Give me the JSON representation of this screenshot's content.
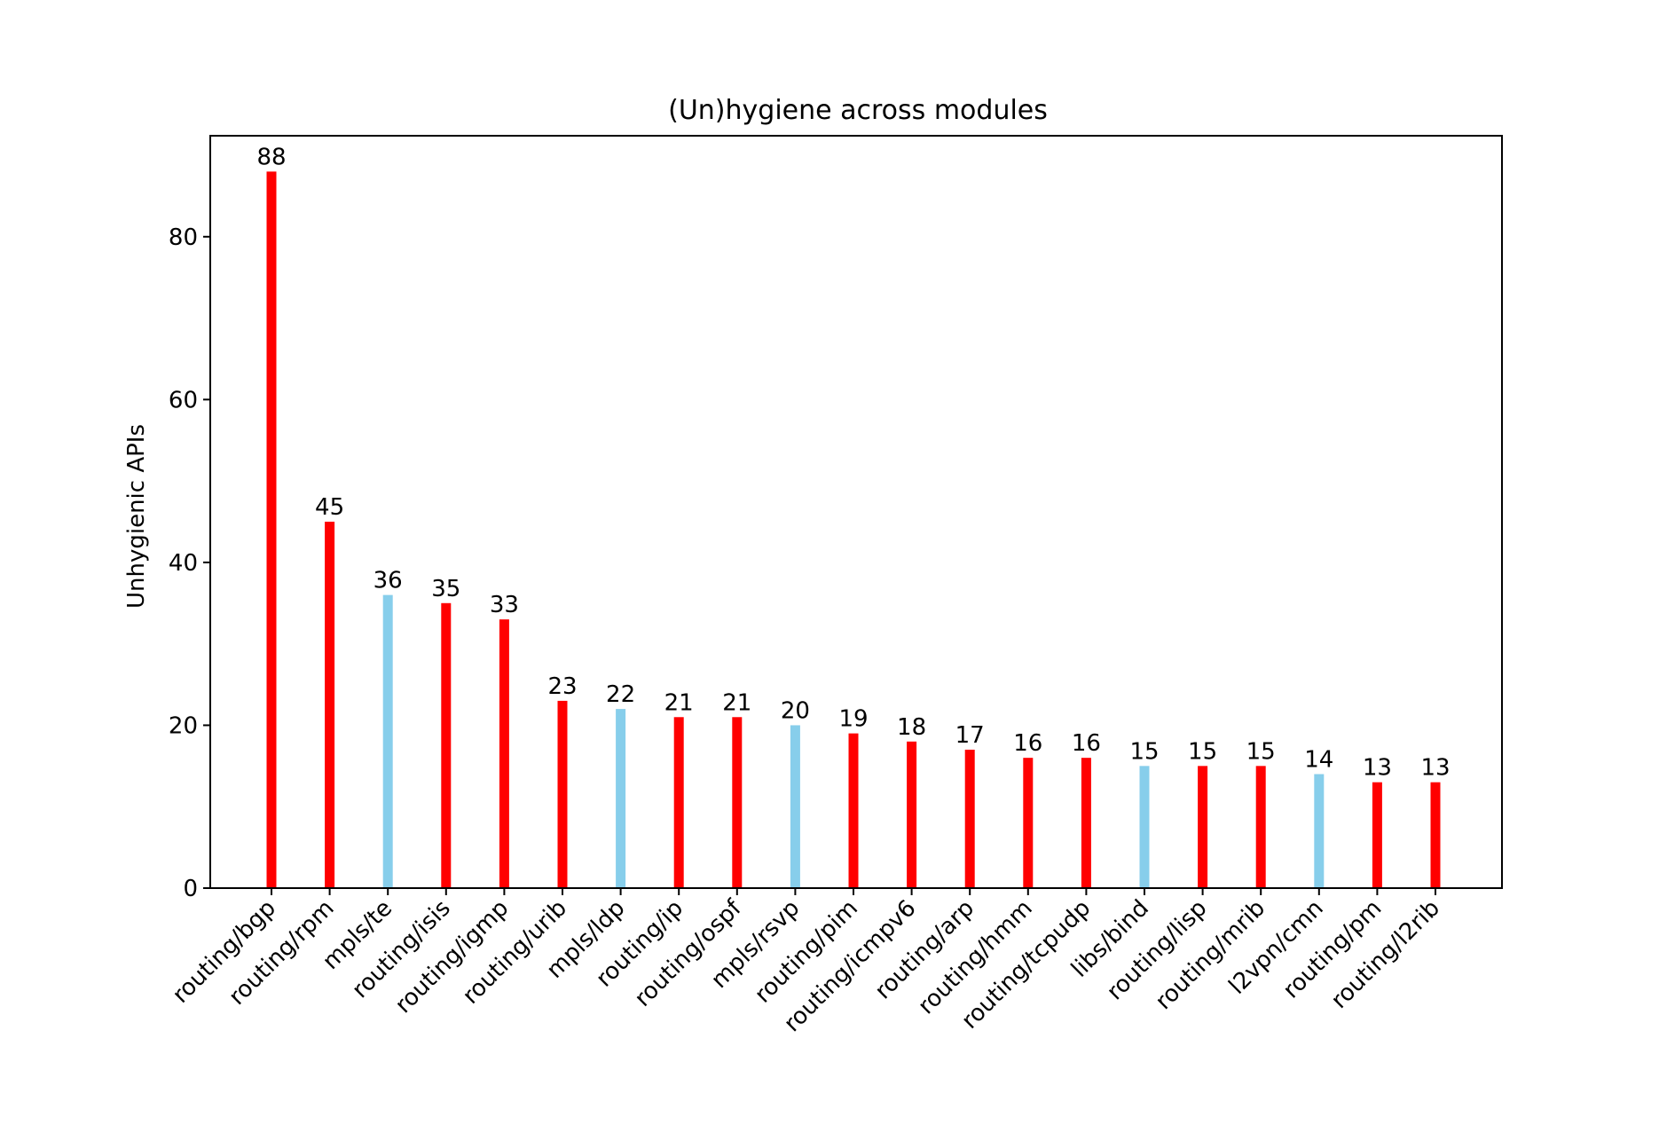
{
  "chart_data": {
    "type": "bar",
    "title": "(Un)hygiene across modules",
    "xlabel": "",
    "ylabel": "Unhygienic APIs",
    "ylim": [
      0,
      92.4
    ],
    "yticks": [
      0,
      20,
      40,
      60,
      80
    ],
    "grid": false,
    "legend": "none",
    "categories": [
      "routing/bgp",
      "routing/rpm",
      "mpls/te",
      "routing/isis",
      "routing/igmp",
      "routing/urib",
      "mpls/ldp",
      "routing/ip",
      "routing/ospf",
      "mpls/rsvp",
      "routing/pim",
      "routing/icmpv6",
      "routing/arp",
      "routing/hmm",
      "routing/tcpudp",
      "libs/bind",
      "routing/lisp",
      "routing/mrib",
      "l2vpn/cmn",
      "routing/pm",
      "routing/l2rib"
    ],
    "values": [
      88,
      45,
      36,
      35,
      33,
      23,
      22,
      21,
      21,
      20,
      19,
      18,
      17,
      16,
      16,
      15,
      15,
      15,
      14,
      13,
      13
    ],
    "value_labels": [
      "88",
      "45",
      "36",
      "35",
      "33",
      "23",
      "22",
      "21",
      "21",
      "20",
      "19",
      "18",
      "17",
      "16",
      "16",
      "15",
      "15",
      "15",
      "14",
      "13",
      "13"
    ],
    "bar_colors": [
      "#ff0000",
      "#ff0000",
      "#87ceeb",
      "#ff0000",
      "#ff0000",
      "#ff0000",
      "#87ceeb",
      "#ff0000",
      "#ff0000",
      "#87ceeb",
      "#ff0000",
      "#ff0000",
      "#ff0000",
      "#ff0000",
      "#ff0000",
      "#87ceeb",
      "#ff0000",
      "#ff0000",
      "#87ceeb",
      "#ff0000",
      "#ff0000"
    ]
  }
}
